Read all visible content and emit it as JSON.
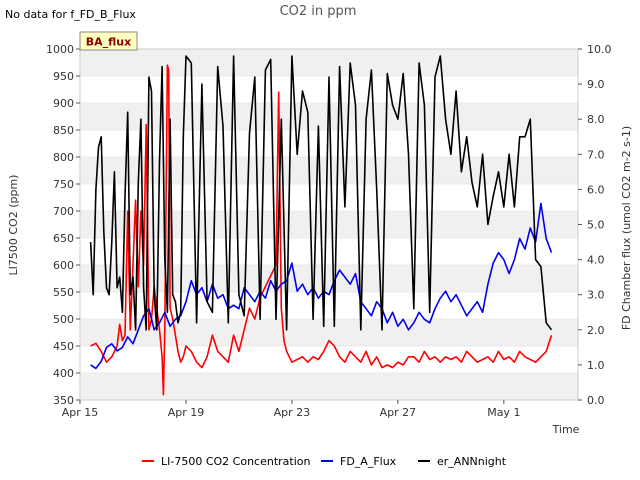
{
  "chart_data": {
    "type": "line",
    "title": "CO2 in ppm",
    "note": "No data for f_FD_B_Flux",
    "badge": "BA_flux",
    "xlabel": "Time",
    "ylabel": "LI7500 CO2 (ppm)",
    "y2label": "FD Chamber flux (umol CO2 m-2 s-1)",
    "xlim": [
      0,
      18.8
    ],
    "ylim": [
      350,
      1000
    ],
    "y2lim": [
      0,
      10
    ],
    "x_ticks": [
      {
        "x": 0,
        "label": "Apr 15"
      },
      {
        "x": 4,
        "label": "Apr 19"
      },
      {
        "x": 8,
        "label": "Apr 23"
      },
      {
        "x": 12,
        "label": "Apr 27"
      },
      {
        "x": 16,
        "label": "May 1"
      }
    ],
    "y_ticks": [
      350,
      400,
      450,
      500,
      550,
      600,
      650,
      700,
      750,
      800,
      850,
      900,
      950,
      1000
    ],
    "y2_ticks": [
      {
        "v": 0,
        "label": "0.0"
      },
      {
        "v": 1,
        "label": "1.0"
      },
      {
        "v": 2,
        "label": "2.0"
      },
      {
        "v": 3,
        "label": "3.0"
      },
      {
        "v": 4,
        "label": "4.0"
      },
      {
        "v": 5,
        "label": "5.0"
      },
      {
        "v": 6,
        "label": "6.0"
      },
      {
        "v": 7,
        "label": "7.0"
      },
      {
        "v": 8,
        "label": "8.0"
      },
      {
        "v": 9,
        "label": "9.0"
      },
      {
        "v": 10,
        "label": "10.0"
      }
    ],
    "grid_bands": true,
    "legend_position": "bottom",
    "series": [
      {
        "name": "LI-7500 CO2 Concentration",
        "color": "#ff0000",
        "axis": "left",
        "x": [
          0.4,
          0.6,
          0.8,
          1.0,
          1.2,
          1.4,
          1.5,
          1.6,
          1.7,
          1.8,
          1.9,
          2.0,
          2.1,
          2.2,
          2.3,
          2.4,
          2.5,
          2.6,
          2.7,
          2.8,
          2.9,
          3.0,
          3.1,
          3.15,
          3.2,
          3.3,
          3.35,
          3.4,
          3.5,
          3.6,
          3.7,
          3.8,
          3.9,
          4.0,
          4.2,
          4.4,
          4.6,
          4.8,
          5.0,
          5.2,
          5.4,
          5.6,
          5.8,
          6.0,
          6.2,
          6.4,
          6.6,
          6.8,
          7.0,
          7.2,
          7.4,
          7.5,
          7.6,
          7.7,
          7.8,
          7.9,
          8.0,
          8.2,
          8.4,
          8.6,
          8.8,
          9.0,
          9.2,
          9.4,
          9.6,
          9.8,
          10.0,
          10.2,
          10.4,
          10.6,
          10.8,
          11.0,
          11.2,
          11.4,
          11.6,
          11.8,
          12.0,
          12.2,
          12.4,
          12.6,
          12.8,
          13.0,
          13.2,
          13.4,
          13.6,
          13.8,
          14.0,
          14.2,
          14.4,
          14.6,
          14.8,
          15.0,
          15.2,
          15.4,
          15.6,
          15.8,
          16.0,
          16.2,
          16.4,
          16.6,
          16.8,
          17.0,
          17.2,
          17.4,
          17.6,
          17.8
        ],
        "y": [
          450,
          455,
          440,
          420,
          430,
          450,
          490,
          460,
          470,
          700,
          480,
          600,
          720,
          560,
          700,
          600,
          860,
          480,
          500,
          560,
          520,
          480,
          430,
          360,
          480,
          970,
          960,
          520,
          500,
          470,
          440,
          420,
          430,
          450,
          440,
          420,
          410,
          430,
          470,
          440,
          430,
          420,
          470,
          440,
          480,
          520,
          500,
          540,
          560,
          580,
          600,
          920,
          520,
          460,
          440,
          430,
          420,
          425,
          430,
          420,
          430,
          425,
          440,
          460,
          450,
          430,
          420,
          440,
          430,
          420,
          440,
          415,
          430,
          410,
          415,
          410,
          420,
          415,
          430,
          430,
          420,
          440,
          425,
          430,
          420,
          430,
          425,
          430,
          420,
          440,
          430,
          420,
          425,
          430,
          420,
          440,
          425,
          430,
          420,
          440,
          430,
          425,
          420,
          430,
          440,
          470
        ]
      },
      {
        "name": "FD_A_Flux",
        "color": "#0000ee",
        "axis": "right",
        "x": [
          0.4,
          0.6,
          0.8,
          1.0,
          1.2,
          1.4,
          1.6,
          1.8,
          2.0,
          2.2,
          2.4,
          2.6,
          2.8,
          3.0,
          3.2,
          3.4,
          3.6,
          3.8,
          4.0,
          4.2,
          4.4,
          4.6,
          4.8,
          5.0,
          5.2,
          5.4,
          5.6,
          5.8,
          6.0,
          6.2,
          6.4,
          6.6,
          6.8,
          7.0,
          7.2,
          7.4,
          7.6,
          7.8,
          8.0,
          8.2,
          8.4,
          8.6,
          8.8,
          9.0,
          9.2,
          9.4,
          9.6,
          9.8,
          10.0,
          10.2,
          10.4,
          10.6,
          10.8,
          11.0,
          11.2,
          11.4,
          11.6,
          11.8,
          12.0,
          12.2,
          12.4,
          12.6,
          12.8,
          13.0,
          13.2,
          13.4,
          13.6,
          13.8,
          14.0,
          14.2,
          14.4,
          14.6,
          14.8,
          15.0,
          15.2,
          15.4,
          15.6,
          15.8,
          16.0,
          16.2,
          16.4,
          16.6,
          16.8,
          17.0,
          17.2,
          17.4,
          17.6,
          17.8
        ],
        "y": [
          1.0,
          0.9,
          1.1,
          1.5,
          1.6,
          1.4,
          1.5,
          1.8,
          1.6,
          2.0,
          2.4,
          2.6,
          2.0,
          2.2,
          2.5,
          2.1,
          2.3,
          2.4,
          2.8,
          3.4,
          3.0,
          3.2,
          2.8,
          3.3,
          2.9,
          3.0,
          2.6,
          2.7,
          2.6,
          3.2,
          3.0,
          2.8,
          3.1,
          2.9,
          3.4,
          3.1,
          3.3,
          3.4,
          3.9,
          3.1,
          3.3,
          3.0,
          3.2,
          2.9,
          3.1,
          3.0,
          3.4,
          3.7,
          3.5,
          3.3,
          3.6,
          2.8,
          2.6,
          2.4,
          2.8,
          2.6,
          2.2,
          2.5,
          2.1,
          2.3,
          2.0,
          2.2,
          2.5,
          2.3,
          2.2,
          2.6,
          2.9,
          3.1,
          2.8,
          3.0,
          2.7,
          2.4,
          2.6,
          2.8,
          2.5,
          3.3,
          3.9,
          4.2,
          4.0,
          3.6,
          4.0,
          4.6,
          4.3,
          4.9,
          4.5,
          5.6,
          4.6,
          4.2
        ]
      },
      {
        "name": "er_ANNnight",
        "color": "#000000",
        "axis": "right",
        "x": [
          0.4,
          0.5,
          0.6,
          0.7,
          0.8,
          0.9,
          1.0,
          1.1,
          1.2,
          1.3,
          1.4,
          1.5,
          1.6,
          1.7,
          1.8,
          1.9,
          2.0,
          2.1,
          2.2,
          2.3,
          2.4,
          2.5,
          2.6,
          2.7,
          2.8,
          2.9,
          3.0,
          3.1,
          3.2,
          3.3,
          3.4,
          3.5,
          3.6,
          3.7,
          3.8,
          3.9,
          4.0,
          4.2,
          4.4,
          4.6,
          4.8,
          5.0,
          5.2,
          5.4,
          5.6,
          5.8,
          6.0,
          6.2,
          6.4,
          6.6,
          6.8,
          7.0,
          7.2,
          7.4,
          7.6,
          7.8,
          8.0,
          8.2,
          8.4,
          8.6,
          8.8,
          9.0,
          9.2,
          9.4,
          9.6,
          9.8,
          10.0,
          10.2,
          10.4,
          10.6,
          10.8,
          11.0,
          11.2,
          11.4,
          11.6,
          11.8,
          12.0,
          12.2,
          12.4,
          12.6,
          12.8,
          13.0,
          13.2,
          13.4,
          13.6,
          13.8,
          14.0,
          14.2,
          14.4,
          14.6,
          14.8,
          15.0,
          15.2,
          15.4,
          15.6,
          15.8,
          16.0,
          16.2,
          16.4,
          16.6,
          16.8,
          17.0,
          17.2,
          17.4,
          17.6,
          17.8
        ],
        "y": [
          4.5,
          3.0,
          6.0,
          7.2,
          7.5,
          4.8,
          3.2,
          3.0,
          4.5,
          6.5,
          3.2,
          3.5,
          2.5,
          5.8,
          8.2,
          3.0,
          3.5,
          2.0,
          6.2,
          8.0,
          3.2,
          2.0,
          9.2,
          8.8,
          3.0,
          2.0,
          6.8,
          9.5,
          4.0,
          2.5,
          8.0,
          3.0,
          2.8,
          2.2,
          2.5,
          7.5,
          9.8,
          9.6,
          2.2,
          9.0,
          2.8,
          2.5,
          9.5,
          7.8,
          2.2,
          9.8,
          3.0,
          2.4,
          7.6,
          9.2,
          2.3,
          9.4,
          9.7,
          2.3,
          8.0,
          2.0,
          9.8,
          7.0,
          8.8,
          8.2,
          2.3,
          7.8,
          2.1,
          9.2,
          2.1,
          9.5,
          5.5,
          9.6,
          8.4,
          2.0,
          8.0,
          9.4,
          6.0,
          2.0,
          9.3,
          8.4,
          8.0,
          9.3,
          7.0,
          2.6,
          9.6,
          8.4,
          2.5,
          9.2,
          9.8,
          8.0,
          7.0,
          8.8,
          6.5,
          7.5,
          6.2,
          5.5,
          7.0,
          5.0,
          5.8,
          6.5,
          5.5,
          7.0,
          5.5,
          7.5,
          7.5,
          8.0,
          4.0,
          3.8,
          2.2,
          2.0
        ]
      }
    ]
  }
}
